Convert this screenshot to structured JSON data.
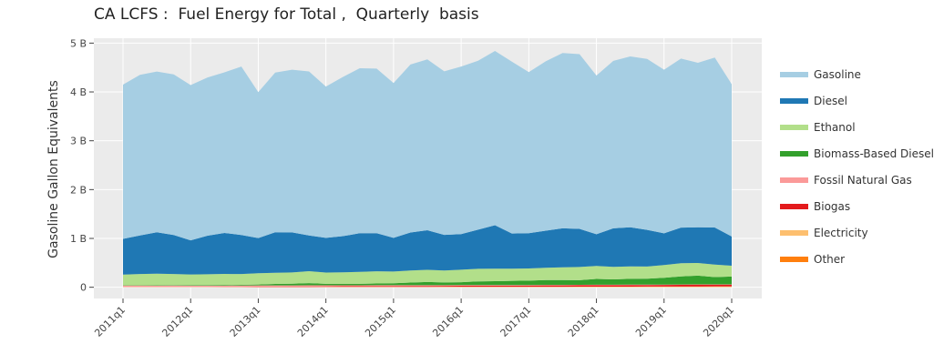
{
  "title": "CA LCFS :  Fuel Energy for Total ,  Quarterly  basis",
  "chart_data": {
    "type": "area",
    "stacked": true,
    "title": "CA LCFS :  Fuel Energy for Total ,  Quarterly  basis",
    "xlabel": "",
    "ylabel": "Gasoline Gallon Equivalents",
    "ylim": [
      -0.23,
      5.1
    ],
    "yticks": [
      0,
      1,
      2,
      3,
      4,
      5
    ],
    "ytick_labels": [
      "0",
      "1 B",
      "2 B",
      "3 B",
      "4 B",
      "5 B"
    ],
    "xtick_labels": [
      "2011q1",
      "2012q1",
      "2013q1",
      "2014q1",
      "2015q1",
      "2016q1",
      "2017q1",
      "2018q1",
      "2019q1",
      "2020q1"
    ],
    "xtick_positions": [
      0,
      4,
      8,
      12,
      16,
      20,
      24,
      28,
      32,
      36
    ],
    "x": [
      "2011q1",
      "2011q2",
      "2011q3",
      "2011q4",
      "2012q1",
      "2012q2",
      "2012q3",
      "2012q4",
      "2013q1",
      "2013q2",
      "2013q3",
      "2013q4",
      "2014q1",
      "2014q2",
      "2014q3",
      "2014q4",
      "2015q1",
      "2015q2",
      "2015q3",
      "2015q4",
      "2016q1",
      "2016q2",
      "2016q3",
      "2016q4",
      "2017q1",
      "2017q2",
      "2017q3",
      "2017q4",
      "2018q1",
      "2018q2",
      "2018q3",
      "2018q4",
      "2019q1",
      "2019q2",
      "2019q3",
      "2019q4",
      "2020q1"
    ],
    "grid": true,
    "legend_position": "right",
    "series": [
      {
        "name": "Other",
        "color": "#ff7f0e",
        "values": [
          0,
          0,
          0,
          0,
          0,
          0,
          0,
          0,
          0,
          0,
          0,
          0,
          0,
          0,
          0,
          0,
          0,
          0,
          0,
          0,
          0,
          0,
          0,
          0,
          0,
          0,
          0,
          0,
          0,
          0,
          0,
          0,
          0,
          0,
          0,
          0,
          0
        ]
      },
      {
        "name": "Electricity",
        "color": "#fdbf6f",
        "values": [
          0.005,
          0.005,
          0.005,
          0.005,
          0.005,
          0.005,
          0.005,
          0.005,
          0.006,
          0.006,
          0.006,
          0.006,
          0.007,
          0.007,
          0.007,
          0.008,
          0.008,
          0.008,
          0.008,
          0.009,
          0.009,
          0.009,
          0.01,
          0.01,
          0.01,
          0.011,
          0.011,
          0.012,
          0.012,
          0.013,
          0.013,
          0.014,
          0.014,
          0.015,
          0.015,
          0.016,
          0.016
        ]
      },
      {
        "name": "Biogas",
        "color": "#e31a1c",
        "values": [
          0.002,
          0.002,
          0.002,
          0.003,
          0.003,
          0.003,
          0.004,
          0.005,
          0.007,
          0.009,
          0.01,
          0.012,
          0.013,
          0.014,
          0.015,
          0.016,
          0.017,
          0.018,
          0.019,
          0.02,
          0.021,
          0.022,
          0.023,
          0.024,
          0.025,
          0.026,
          0.027,
          0.028,
          0.029,
          0.03,
          0.031,
          0.032,
          0.033,
          0.034,
          0.035,
          0.035,
          0.036
        ]
      },
      {
        "name": "Fossil Natural Gas",
        "color": "#fb9a99",
        "values": [
          0.028,
          0.028,
          0.027,
          0.027,
          0.026,
          0.026,
          0.025,
          0.025,
          0.024,
          0.024,
          0.023,
          0.022,
          0.021,
          0.02,
          0.019,
          0.018,
          0.017,
          0.016,
          0.015,
          0.014,
          0.014,
          0.013,
          0.012,
          0.012,
          0.011,
          0.011,
          0.01,
          0.01,
          0.01,
          0.009,
          0.009,
          0.009,
          0.008,
          0.008,
          0.008,
          0.008,
          0.008
        ]
      },
      {
        "name": "Biomass-Based Diesel",
        "color": "#33a02c",
        "values": [
          0.005,
          0.006,
          0.008,
          0.01,
          0.012,
          0.012,
          0.013,
          0.015,
          0.02,
          0.028,
          0.035,
          0.045,
          0.03,
          0.03,
          0.03,
          0.035,
          0.04,
          0.055,
          0.065,
          0.055,
          0.06,
          0.075,
          0.08,
          0.085,
          0.09,
          0.1,
          0.1,
          0.095,
          0.12,
          0.11,
          0.12,
          0.12,
          0.14,
          0.165,
          0.18,
          0.15,
          0.16
        ]
      },
      {
        "name": "Ethanol",
        "color": "#b2df8a",
        "values": [
          0.22,
          0.23,
          0.235,
          0.225,
          0.215,
          0.22,
          0.225,
          0.22,
          0.23,
          0.23,
          0.23,
          0.245,
          0.23,
          0.235,
          0.245,
          0.25,
          0.24,
          0.245,
          0.25,
          0.245,
          0.255,
          0.26,
          0.255,
          0.25,
          0.25,
          0.25,
          0.26,
          0.27,
          0.265,
          0.255,
          0.255,
          0.25,
          0.26,
          0.27,
          0.26,
          0.255,
          0.22
        ]
      },
      {
        "name": "Diesel",
        "color": "#1f78b4",
        "values": [
          0.73,
          0.79,
          0.85,
          0.8,
          0.7,
          0.79,
          0.84,
          0.8,
          0.72,
          0.83,
          0.82,
          0.73,
          0.71,
          0.74,
          0.79,
          0.78,
          0.69,
          0.78,
          0.81,
          0.73,
          0.73,
          0.8,
          0.89,
          0.72,
          0.72,
          0.76,
          0.8,
          0.78,
          0.65,
          0.79,
          0.8,
          0.75,
          0.65,
          0.73,
          0.73,
          0.76,
          0.6
        ]
      },
      {
        "name": "Gasoline",
        "color": "#a6cee3",
        "values": [
          3.16,
          3.29,
          3.29,
          3.29,
          3.18,
          3.24,
          3.29,
          3.45,
          2.99,
          3.27,
          3.33,
          3.36,
          3.1,
          3.26,
          3.38,
          3.37,
          3.17,
          3.44,
          3.5,
          3.35,
          3.43,
          3.46,
          3.57,
          3.52,
          3.3,
          3.47,
          3.59,
          3.58,
          3.25,
          3.43,
          3.5,
          3.5,
          3.35,
          3.46,
          3.37,
          3.48,
          3.12
        ]
      }
    ]
  }
}
